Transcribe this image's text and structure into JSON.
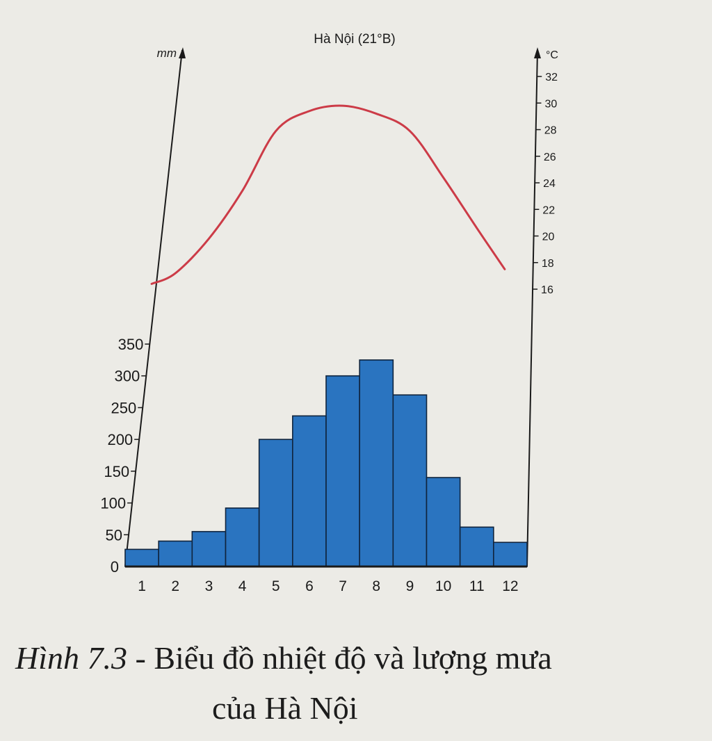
{
  "chart_data": {
    "type": "bar+line",
    "title": "Hà Nội (21°B)",
    "x_categories": [
      "1",
      "2",
      "3",
      "4",
      "5",
      "6",
      "7",
      "8",
      "9",
      "10",
      "11",
      "12"
    ],
    "left_axis": {
      "unit": "mm",
      "ticks": [
        "0",
        "50",
        "100",
        "150",
        "200",
        "250",
        "300",
        "350"
      ],
      "ylim": [
        0,
        350
      ]
    },
    "right_axis": {
      "unit": "°C",
      "ticks": [
        "16",
        "18",
        "20",
        "22",
        "24",
        "26",
        "28",
        "30",
        "32"
      ],
      "ylim": [
        16,
        32
      ]
    },
    "series": [
      {
        "type": "bar",
        "axis": "left",
        "values": [
          27,
          40,
          55,
          92,
          200,
          237,
          300,
          325,
          270,
          140,
          62,
          38
        ]
      },
      {
        "type": "line",
        "axis": "right",
        "values": [
          16.4,
          17.2,
          19.8,
          23.4,
          27.9,
          29.4,
          29.8,
          29.2,
          27.9,
          24.4,
          20.6,
          17.5
        ]
      }
    ],
    "colors": {
      "bar": "#2a74c0",
      "bar_edge": "#10243d",
      "line": "#cc3b47",
      "axis": "#1a1a1a"
    },
    "grid": false
  },
  "caption": {
    "figure_number": "Hình 7.3",
    "separator": " - ",
    "text": "Biểu đồ nhiệt độ và lượng mưa",
    "line2": "của Hà Nội"
  }
}
